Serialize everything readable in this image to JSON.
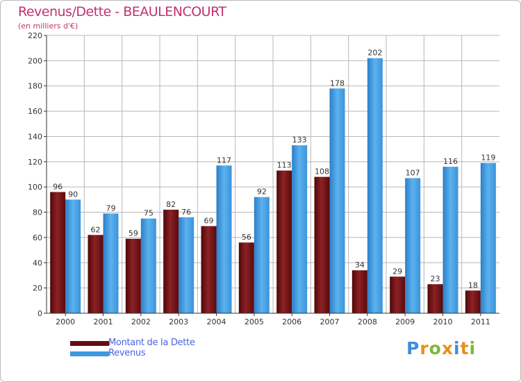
{
  "title": "Revenus/Dette - BEAULENCOURT",
  "subtitle": "(en milliers d'€)",
  "legend": {
    "debt_label": "Montant de la Dette",
    "revenue_label": "Revenus"
  },
  "logo": {
    "text": "Proxiti",
    "letters": [
      "P",
      "r",
      "o",
      "x",
      "i",
      "t",
      "i"
    ]
  },
  "colors": {
    "title": "#c0336d",
    "debt": "#7a1416",
    "revenue": "#3d9ae0",
    "legend_text": "#4a63e0",
    "grid": "#b8b8b8"
  },
  "chart_data": {
    "type": "bar",
    "categories": [
      "2000",
      "2001",
      "2002",
      "2003",
      "2004",
      "2005",
      "2006",
      "2007",
      "2008",
      "2009",
      "2010",
      "2011"
    ],
    "series": [
      {
        "name": "Montant de la Dette",
        "values": [
          96,
          62,
          59,
          82,
          69,
          56,
          113,
          108,
          34,
          29,
          23,
          18
        ]
      },
      {
        "name": "Revenus",
        "values": [
          90,
          79,
          75,
          76,
          117,
          92,
          133,
          178,
          202,
          107,
          116,
          119
        ]
      }
    ],
    "ylim": [
      0,
      220
    ],
    "yticks": [
      0,
      20,
      40,
      60,
      80,
      100,
      120,
      140,
      160,
      180,
      200,
      220
    ],
    "title": "Revenus/Dette - BEAULENCOURT",
    "ylabel": "(en milliers d'€)",
    "xlabel": "",
    "grid": true,
    "legend_position": "bottom-left"
  }
}
